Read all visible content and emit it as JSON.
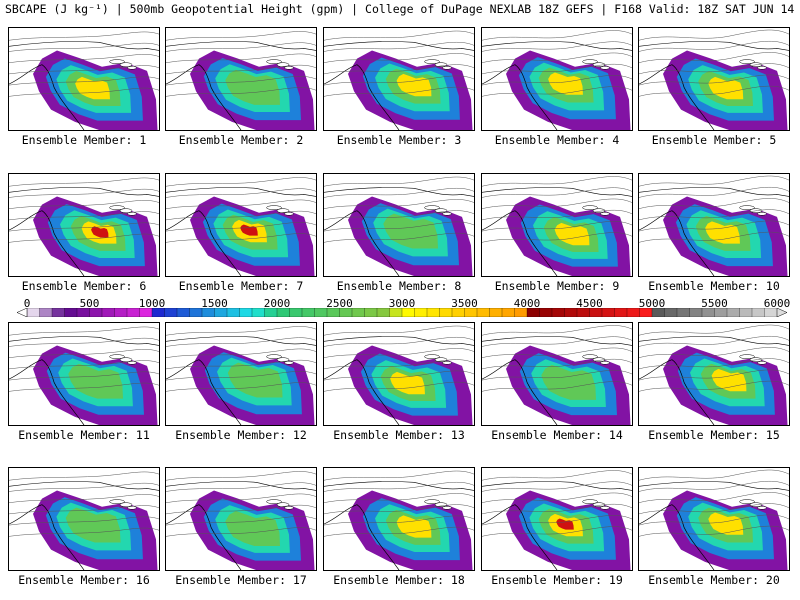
{
  "title": "SBCAPE (J kg⁻¹) | 500mb Geopotential Height (gpm) | College of DuPage NEXLAB 18Z GEFS | F168 Valid: 18Z SAT JUN 14 2025",
  "members": [
    {
      "label": "Ensemble Member: 1",
      "intensity": 0.55
    },
    {
      "label": "Ensemble Member: 2",
      "intensity": 0.4
    },
    {
      "label": "Ensemble Member: 3",
      "intensity": 0.6
    },
    {
      "label": "Ensemble Member: 4",
      "intensity": 0.6
    },
    {
      "label": "Ensemble Member: 5",
      "intensity": 0.6
    },
    {
      "label": "Ensemble Member: 6",
      "intensity": 0.85
    },
    {
      "label": "Ensemble Member: 7",
      "intensity": 0.95
    },
    {
      "label": "Ensemble Member: 8",
      "intensity": 0.45
    },
    {
      "label": "Ensemble Member: 9",
      "intensity": 0.75
    },
    {
      "label": "Ensemble Member: 10",
      "intensity": 0.75
    },
    {
      "label": "Ensemble Member: 11",
      "intensity": 0.45
    },
    {
      "label": "Ensemble Member: 12",
      "intensity": 0.4
    },
    {
      "label": "Ensemble Member: 13",
      "intensity": 0.55
    },
    {
      "label": "Ensemble Member: 14",
      "intensity": 0.5
    },
    {
      "label": "Ensemble Member: 15",
      "intensity": 0.6
    },
    {
      "label": "Ensemble Member: 16",
      "intensity": 0.35
    },
    {
      "label": "Ensemble Member: 17",
      "intensity": 0.4
    },
    {
      "label": "Ensemble Member: 18",
      "intensity": 0.55
    },
    {
      "label": "Ensemble Member: 19",
      "intensity": 0.85
    },
    {
      "label": "Ensemble Member: 20",
      "intensity": 0.7
    }
  ],
  "colorbar": {
    "min": 0,
    "max": 6000,
    "step": 100,
    "tick_labels": [
      "0",
      "500",
      "1000",
      "1500",
      "2000",
      "2500",
      "3000",
      "3500",
      "4000",
      "4500",
      "5000",
      "5500",
      "6000"
    ],
    "color_stops": [
      {
        "v": 0,
        "c": "#ffffff"
      },
      {
        "v": 300,
        "c": "#5a0a8a"
      },
      {
        "v": 1000,
        "c": "#e628e6"
      },
      {
        "v": 1050,
        "c": "#1e28d0"
      },
      {
        "v": 1800,
        "c": "#1ee6e6"
      },
      {
        "v": 2000,
        "c": "#28c878"
      },
      {
        "v": 2900,
        "c": "#8cc83c"
      },
      {
        "v": 3000,
        "c": "#ffff00"
      },
      {
        "v": 4000,
        "c": "#ff9600"
      },
      {
        "v": 4050,
        "c": "#8c0000"
      },
      {
        "v": 5000,
        "c": "#ff1e1e"
      },
      {
        "v": 5050,
        "c": "#5a5a5a"
      },
      {
        "v": 6000,
        "c": "#dcdcdc"
      }
    ]
  }
}
